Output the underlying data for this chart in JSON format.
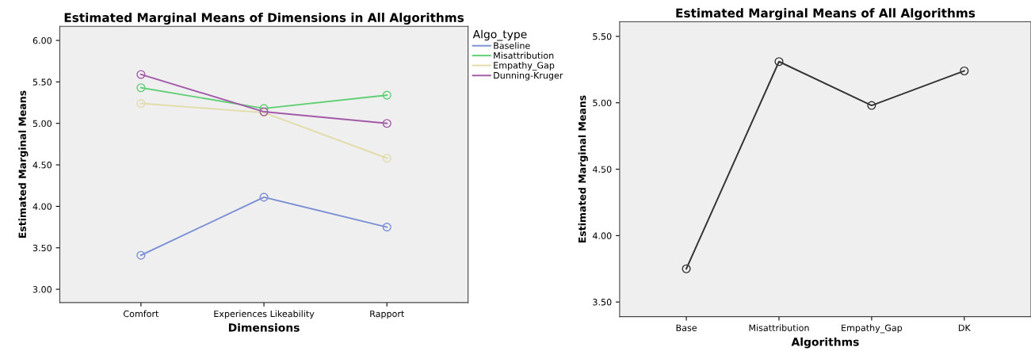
{
  "chart_data": [
    {
      "type": "line",
      "title": "Estimated Marginal Means of Dimensions in All Algorithms",
      "xlabel": "Dimensions",
      "ylabel": "Estimated Marginal Means",
      "legend_title": "Algo_type",
      "legend": "top right",
      "marker": "circle",
      "grid": false,
      "categories": [
        "Comfort",
        "Experiences Likeability",
        "Rapport"
      ],
      "ylim": [
        2.84,
        6.17
      ],
      "yticks": [
        {
          "value": 3.0,
          "label": "3.00"
        },
        {
          "value": 3.5,
          "label": "3.50"
        },
        {
          "value": 4.0,
          "label": "4.00"
        },
        {
          "value": 4.5,
          "label": "4.50"
        },
        {
          "value": 5.0,
          "label": "5.00"
        },
        {
          "value": 5.5,
          "label": "5.50"
        },
        {
          "value": 6.0,
          "label": "6.00"
        }
      ],
      "series": [
        {
          "name": "Baseline",
          "color": "#7b8fd4",
          "values": [
            3.41,
            4.11,
            3.75
          ]
        },
        {
          "name": "Misattribution",
          "color": "#5fcf73",
          "values": [
            5.43,
            5.18,
            5.34
          ]
        },
        {
          "name": "Empathy_Gap",
          "color": "#e2dcaa",
          "values": [
            5.24,
            5.13,
            4.58
          ]
        },
        {
          "name": "Dunning-Kruger",
          "color": "#a35aa8",
          "values": [
            5.59,
            5.14,
            5.0
          ]
        }
      ]
    },
    {
      "type": "line",
      "title": "Estimated Marginal Means of All Algorithms",
      "xlabel": "Algorithms",
      "ylabel": "Estimated Marginal Means",
      "marker": "circle",
      "grid": false,
      "categories": [
        "Base",
        "Misattribution",
        "Empathy_Gap",
        "DK"
      ],
      "ylim": [
        3.39,
        5.61
      ],
      "yticks": [
        {
          "value": 3.5,
          "label": "3.50"
        },
        {
          "value": 4.0,
          "label": "4.00"
        },
        {
          "value": 4.5,
          "label": "4.50"
        },
        {
          "value": 5.0,
          "label": "5.00"
        },
        {
          "value": 5.5,
          "label": "5.50"
        }
      ],
      "series": [
        {
          "color": "#333333",
          "values": [
            3.75,
            5.31,
            4.98,
            5.24
          ]
        }
      ]
    }
  ]
}
